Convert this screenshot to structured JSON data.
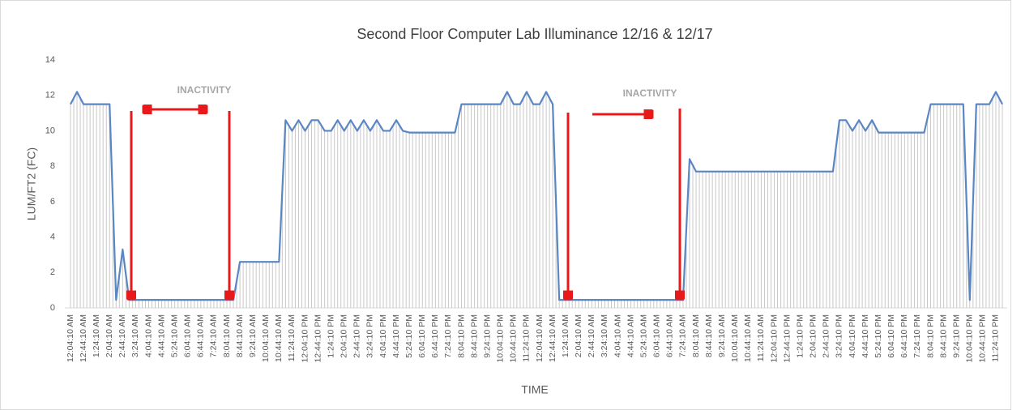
{
  "chart_data": {
    "type": "line",
    "title": "Second Floor Computer Lab Illuminance 12/16 & 12/17",
    "x_label": "TIME",
    "y_label": "LUM/FT2 (FC)",
    "annotations": [
      "INACTIVITY",
      "INACTIVITY"
    ],
    "categories": [
      "12:04:10 AM",
      null,
      "12:44:10 AM",
      null,
      "1:24:10 AM",
      null,
      "2:04:10 AM",
      null,
      "2:44:10 AM",
      null,
      "3:24:10 AM",
      null,
      "4:04:10 AM",
      null,
      "4:44:10 AM",
      null,
      "5:24:10 AM",
      null,
      "6:04:10 AM",
      null,
      "6:44:10 AM",
      null,
      "7:24:10 AM",
      null,
      "8:04:10 AM",
      null,
      "8:44:10 AM",
      null,
      "9:24:10 AM",
      null,
      "10:04:10 AM",
      null,
      "10:44:10 AM",
      null,
      "11:24:10 AM",
      null,
      "12:04:10 PM",
      null,
      "12:44:10 PM",
      null,
      "1:24:10 PM",
      null,
      "2:04:10 PM",
      null,
      "2:44:10 PM",
      null,
      "3:24:10 PM",
      null,
      "4:04:10 PM",
      null,
      "4:44:10 PM",
      null,
      "5:24:10 PM",
      null,
      "6:04:10 PM",
      null,
      "6:44:10 PM",
      null,
      "7:24:10 PM",
      null,
      "8:04:10 PM",
      null,
      "8:44:10 PM",
      null,
      "9:24:10 PM",
      null,
      "10:04:10 PM",
      null,
      "10:44:10 PM",
      null,
      "11:24:10 PM",
      null,
      "12:04:10 AM",
      null,
      "12:44:10 AM",
      null,
      "1:24:10 AM",
      null,
      "2:04:10 AM",
      null,
      "2:44:10 AM",
      null,
      "3:24:10 AM",
      null,
      "4:04:10 AM",
      null,
      "4:44:10 AM",
      null,
      "5:24:10 AM",
      null,
      "6:04:10 AM",
      null,
      "6:44:10 AM",
      null,
      "7:24:10 AM",
      null,
      "8:04:10 AM",
      null,
      "8:44:10 AM",
      null,
      "9:24:10 AM",
      null,
      "10:04:10 AM",
      null,
      "10:44:10 AM",
      null,
      "11:24:10 AM",
      null,
      "12:04:10 PM",
      null,
      "12:44:10 PM",
      null,
      "1:24:10 PM",
      null,
      "2:04:10 PM",
      null,
      "2:44:10 PM",
      null,
      "3:24:10 PM",
      null,
      "4:04:10 PM",
      null,
      "4:44:10 PM",
      null,
      "5:24:10 PM",
      null,
      "6:04:10 PM",
      null,
      "6:44:10 PM",
      null,
      "7:24:10 PM",
      null,
      "8:04:10 PM",
      null,
      "8:44:10 PM",
      null,
      "9:24:10 PM",
      null,
      "10:04:10 PM",
      null,
      "10:44:10 PM",
      null,
      "11:24:10 PM",
      null
    ],
    "series": [
      {
        "name": "LUM/FT2 (FC)",
        "color": "#5a86c4",
        "values": [
          11.5,
          12.2,
          11.5,
          11.5,
          11.5,
          11.5,
          11.5,
          0.45,
          3.3,
          0.45,
          0.45,
          0.45,
          0.45,
          0.45,
          0.45,
          0.45,
          0.45,
          0.45,
          0.45,
          0.45,
          0.45,
          0.45,
          0.45,
          0.45,
          0.45,
          0.45,
          2.6,
          2.6,
          2.6,
          2.6,
          2.6,
          2.6,
          2.6,
          10.6,
          10,
          10.6,
          10,
          10.6,
          10.6,
          10,
          10,
          10.6,
          10,
          10.6,
          10,
          10.6,
          10,
          10.6,
          10,
          10,
          10.6,
          10,
          9.9,
          9.9,
          9.9,
          9.9,
          9.9,
          9.9,
          9.9,
          9.9,
          11.5,
          11.5,
          11.5,
          11.5,
          11.5,
          11.5,
          11.5,
          12.2,
          11.5,
          11.5,
          12.2,
          11.5,
          11.5,
          12.2,
          11.5,
          0.45,
          0.45,
          0.45,
          0.45,
          0.45,
          0.45,
          0.45,
          0.45,
          0.45,
          0.45,
          0.45,
          0.45,
          0.45,
          0.45,
          0.45,
          0.45,
          0.45,
          0.45,
          0.45,
          0.45,
          8.4,
          7.7,
          7.7,
          7.7,
          7.7,
          7.7,
          7.7,
          7.7,
          7.7,
          7.7,
          7.7,
          7.7,
          7.7,
          7.7,
          7.7,
          7.7,
          7.7,
          7.7,
          7.7,
          7.7,
          7.7,
          7.7,
          7.7,
          10.6,
          10.6,
          10,
          10.6,
          10,
          10.6,
          9.9,
          9.9,
          9.9,
          9.9,
          9.9,
          9.9,
          9.9,
          9.9,
          11.5,
          11.5,
          11.5,
          11.5,
          11.5,
          11.5,
          0.45,
          11.5,
          11.5,
          11.5,
          12.2,
          11.5
        ]
      }
    ],
    "ylim": [
      0,
      14
    ],
    "yticks": [
      0,
      2,
      4,
      6,
      8,
      10,
      12,
      14
    ],
    "fill_color": "#c8c8c8",
    "annotation_color": "#a6a6a6",
    "arrow_color": "#e8191b"
  }
}
